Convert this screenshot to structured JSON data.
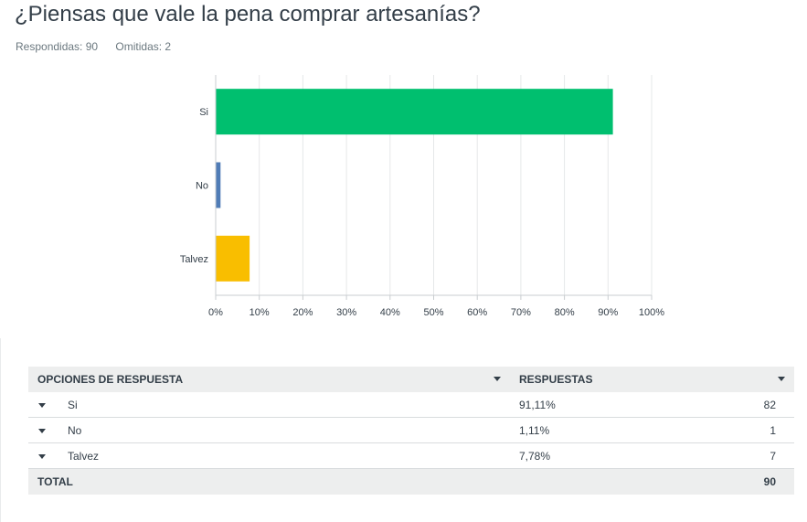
{
  "question": {
    "title": "¿Piensas que vale la pena comprar artesanías?",
    "answered": "Respondidas: 90",
    "skipped": "Omitidas: 2"
  },
  "chart_data": {
    "type": "bar",
    "orientation": "horizontal",
    "categories": [
      "Si",
      "No",
      "Talvez"
    ],
    "values": [
      91.11,
      1.11,
      7.78
    ],
    "colors": [
      "#00bf6f",
      "#507cb6",
      "#f9be00"
    ],
    "xlim": [
      0,
      100
    ],
    "xticks": [
      "0%",
      "10%",
      "20%",
      "30%",
      "40%",
      "50%",
      "60%",
      "70%",
      "80%",
      "90%",
      "100%"
    ],
    "grid": true
  },
  "table": {
    "headers": {
      "options": "OPCIONES DE RESPUESTA",
      "responses": "RESPUESTAS"
    },
    "rows": [
      {
        "label": "Si",
        "percent": "91,11%",
        "count": "82"
      },
      {
        "label": "No",
        "percent": "1,11%",
        "count": "1"
      },
      {
        "label": "Talvez",
        "percent": "7,78%",
        "count": "7"
      }
    ],
    "total": {
      "label": "TOTAL",
      "count": "90"
    }
  }
}
